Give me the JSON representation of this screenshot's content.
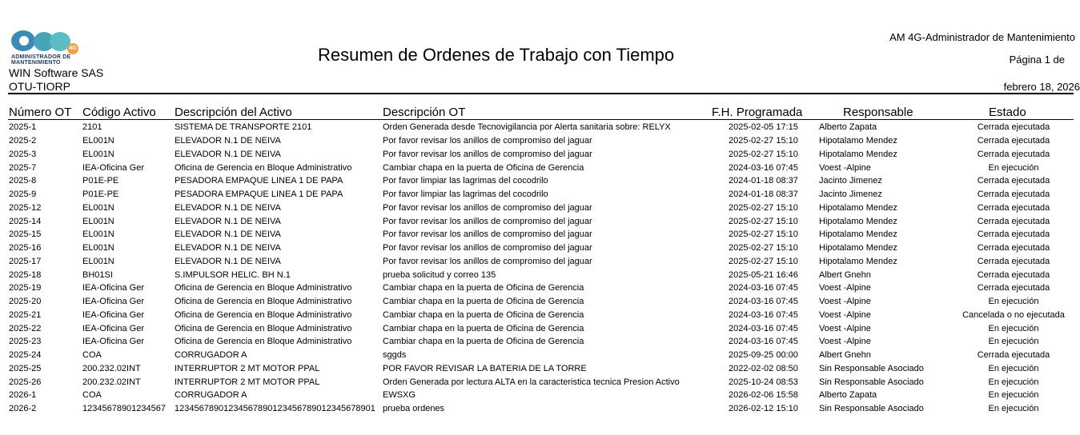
{
  "header": {
    "logo_text": [
      "ADMINISTRADOR DE",
      "MANTENIMIENTO"
    ],
    "logo_badge": "4G",
    "company": "WIN Software SAS",
    "report_code": "OTU-TIORP",
    "title": "Resumen de Ordenes de Trabajo con Tiempo",
    "app_name": "AM 4G-Administrador de Mantenimiento",
    "page": "Página 1 de",
    "date": "febrero 18, 2026"
  },
  "columns": [
    "Número OT",
    "Código Activo",
    "Descripción del Activo",
    "Descripción OT",
    "F.H. Programada",
    "Responsable",
    "Estado"
  ],
  "rows": [
    [
      "2025-1",
      "2101",
      "SISTEMA DE TRANSPORTE 2101",
      "Orden Generada desde Tecnovigilancia por  Alerta sanitaria sobre: RELYX",
      "2025-02-05 17:15",
      "Alberto Zapata",
      "Cerrada ejecutada"
    ],
    [
      "2025-2",
      "EL001N",
      "ELEVADOR N.1 DE NEIVA",
      "Por favor revisar los anillos de compromiso del jaguar",
      "2025-02-27 15:10",
      "Hipotalamo Mendez",
      "Cerrada ejecutada"
    ],
    [
      "2025-3",
      "EL001N",
      "ELEVADOR N.1 DE NEIVA",
      "Por favor revisar los anillos de compromiso del jaguar",
      "2025-02-27 15:10",
      "Hipotalamo Mendez",
      "Cerrada ejecutada"
    ],
    [
      "2025-7",
      "IEA-Oficina Ger",
      "Oficina de Gerencia en Bloque Administrativo",
      "Cambiar chapa en la puerta de Oficina de Gerencia",
      "2024-03-16 07:45",
      "Voest -Alpine",
      "En ejecución"
    ],
    [
      "2025-8",
      "P01E-PE",
      "PESADORA EMPAQUE LINEA 1 DE PAPA",
      "Por favor limpiar las lagrimas del cocodrilo",
      "2024-01-18 08:37",
      "Jacinto Jimenez",
      "Cerrada ejecutada"
    ],
    [
      "2025-9",
      "P01E-PE",
      "PESADORA EMPAQUE LINEA 1 DE PAPA",
      "Por favor limpiar las lagrimas del cocodrilo",
      "2024-01-18 08:37",
      "Jacinto Jimenez",
      "Cerrada ejecutada"
    ],
    [
      "2025-12",
      "EL001N",
      "ELEVADOR N.1 DE NEIVA",
      "Por favor revisar los anillos de compromiso del jaguar",
      "2025-02-27 15:10",
      "Hipotalamo Mendez",
      "Cerrada ejecutada"
    ],
    [
      "2025-14",
      "EL001N",
      "ELEVADOR N.1 DE NEIVA",
      "Por favor revisar los anillos de compromiso del jaguar",
      "2025-02-27 15:10",
      "Hipotalamo Mendez",
      "Cerrada ejecutada"
    ],
    [
      "2025-15",
      "EL001N",
      "ELEVADOR N.1 DE NEIVA",
      "Por favor revisar los anillos de compromiso del jaguar",
      "2025-02-27 15:10",
      "Hipotalamo Mendez",
      "Cerrada ejecutada"
    ],
    [
      "2025-16",
      "EL001N",
      "ELEVADOR N.1 DE NEIVA",
      "Por favor revisar los anillos de compromiso del jaguar",
      "2025-02-27 15:10",
      "Hipotalamo Mendez",
      "Cerrada ejecutada"
    ],
    [
      "2025-17",
      "EL001N",
      "ELEVADOR N.1 DE NEIVA",
      "Por favor revisar los anillos de compromiso del jaguar",
      "2025-02-27 15:10",
      "Hipotalamo Mendez",
      "Cerrada ejecutada"
    ],
    [
      "2025-18",
      "BH01SI",
      "S.IMPULSOR  HELIC. BH N.1",
      "prueba solicitud y correo 135",
      "2025-05-21 16:46",
      "Albert Gnehn",
      "Cerrada ejecutada"
    ],
    [
      "2025-19",
      "IEA-Oficina Ger",
      "Oficina de Gerencia en Bloque Administrativo",
      "Cambiar chapa en la puerta de Oficina de Gerencia",
      "2024-03-16 07:45",
      "Voest -Alpine",
      "Cerrada ejecutada"
    ],
    [
      "2025-20",
      "IEA-Oficina Ger",
      "Oficina de Gerencia en Bloque Administrativo",
      "Cambiar chapa en la puerta de Oficina de Gerencia",
      "2024-03-16 07:45",
      "Voest -Alpine",
      "En ejecución"
    ],
    [
      "2025-21",
      "IEA-Oficina Ger",
      "Oficina de Gerencia en Bloque Administrativo",
      "Cambiar chapa en la puerta de Oficina de Gerencia",
      "2024-03-16 07:45",
      "Voest -Alpine",
      "Cancelada o no ejecutada"
    ],
    [
      "2025-22",
      "IEA-Oficina Ger",
      "Oficina de Gerencia en Bloque Administrativo",
      "Cambiar chapa en la puerta de Oficina de Gerencia",
      "2024-03-16 07:45",
      "Voest -Alpine",
      "En ejecución"
    ],
    [
      "2025-23",
      "IEA-Oficina Ger",
      "Oficina de Gerencia en Bloque Administrativo",
      "Cambiar chapa en la puerta de Oficina de Gerencia",
      "2024-03-16 07:45",
      "Voest -Alpine",
      "En ejecución"
    ],
    [
      "2025-24",
      "COA",
      "CORRUGADOR A",
      "sggds",
      "2025-09-25 00:00",
      "Albert Gnehn",
      "Cerrada ejecutada"
    ],
    [
      "2025-25",
      "200.232.02INT",
      "INTERRUPTOR 2 MT MOTOR PPAL",
      "POR FAVOR REVISAR LA BATERIA DE LA TORRE",
      "2022-02-02 08:50",
      "Sin Responsable Asociado",
      "En ejecución"
    ],
    [
      "2025-26",
      "200.232.02INT",
      "INTERRUPTOR 2 MT MOTOR PPAL",
      "Orden Generada por lectura ALTA en la caracteristica tecnica Presion Activo",
      "2025-10-24 08:53",
      "Sin Responsable Asociado",
      "En ejecución"
    ],
    [
      "2026-1",
      "COA",
      "CORRUGADOR A",
      "EWSXG",
      "2026-02-06 15:58",
      "Alberto Zapata",
      "En ejecución"
    ],
    [
      "2026-2",
      "12345678901234567",
      "12345678901234567890123456789012345678901",
      "prueba ordenes",
      "2026-02-12 15:10",
      "Sin Responsable Asociado",
      "En ejecución"
    ]
  ]
}
